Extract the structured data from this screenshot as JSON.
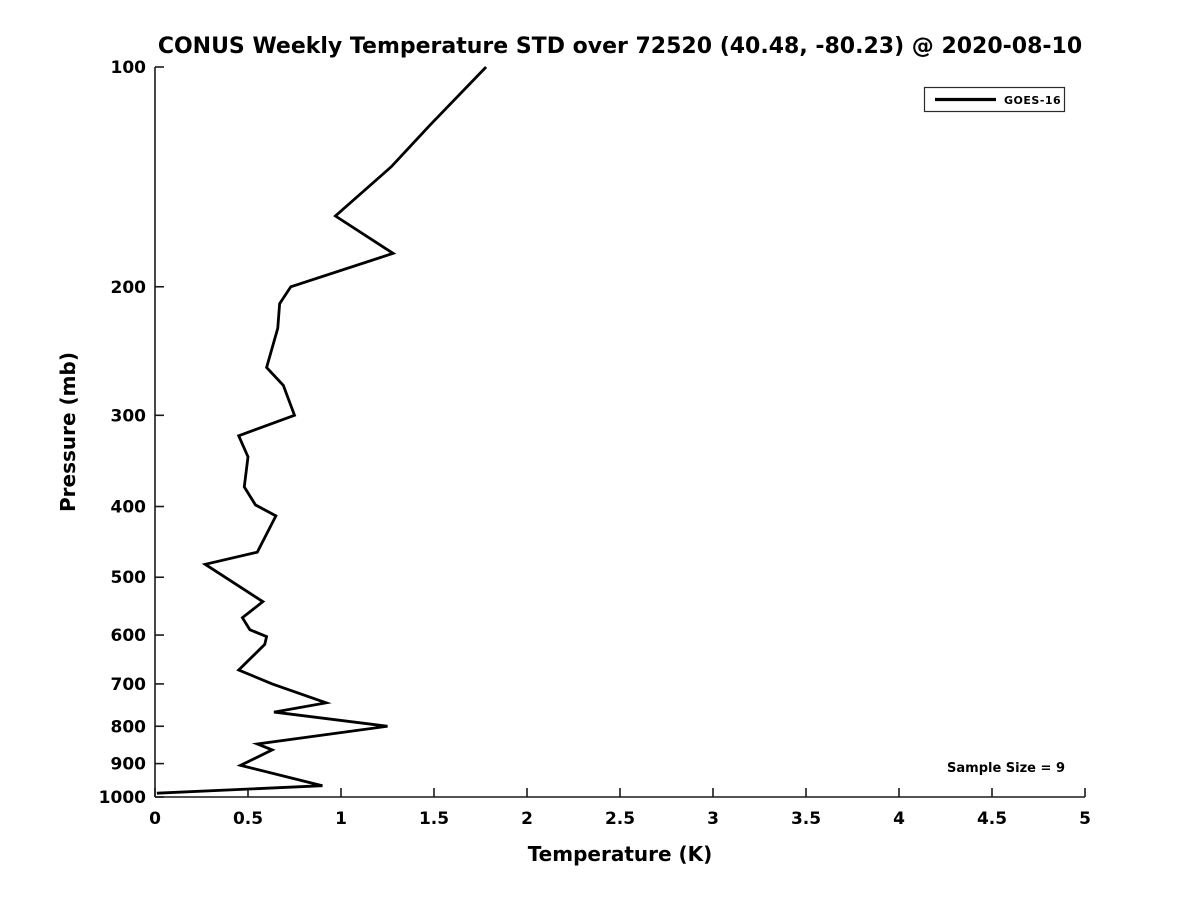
{
  "figure": {
    "background_color": "#ffffff",
    "text_color": "#000000"
  },
  "chart_data": {
    "type": "line",
    "title": "CONUS Weekly Temperature STD over 72520 (40.48, -80.23) @ 2020-08-10",
    "xlabel": "Temperature (K)",
    "ylabel": "Pressure (mb)",
    "xlim": [
      0,
      5
    ],
    "ylim": [
      100,
      1000
    ],
    "yscale": "log",
    "y_axis_direction": "inverted (100 mb at top, 1000 mb at bottom)",
    "grid": false,
    "x_ticks": [
      0,
      0.5,
      1,
      1.5,
      2,
      2.5,
      3,
      3.5,
      4,
      4.5,
      5
    ],
    "y_ticks": [
      100,
      200,
      300,
      400,
      500,
      600,
      700,
      800,
      900,
      1000
    ],
    "legend": {
      "position": "upper right",
      "entries": [
        {
          "label": "GOES-16",
          "color": "#000000"
        }
      ]
    },
    "annotations": [
      {
        "text": "Sample Size = 9",
        "position": "lower right"
      }
    ],
    "series": [
      {
        "name": "GOES-16",
        "color": "#000000",
        "line_width": 2.8,
        "pressure_mb": [
          100,
          120,
          137,
          160,
          180,
          200,
          211,
          228,
          258,
          273,
          300,
          320,
          342,
          376,
          398,
          412,
          462,
          480,
          540,
          568,
          590,
          603,
          618,
          670,
          700,
          743,
          765,
          800,
          846,
          862,
          905,
          965,
          988
        ],
        "std_k": [
          1.78,
          1.48,
          1.27,
          0.97,
          1.28,
          0.73,
          0.67,
          0.66,
          0.6,
          0.69,
          0.75,
          0.45,
          0.5,
          0.48,
          0.54,
          0.65,
          0.55,
          0.27,
          0.58,
          0.47,
          0.51,
          0.6,
          0.59,
          0.45,
          0.63,
          0.92,
          0.64,
          1.25,
          0.55,
          0.63,
          0.46,
          0.9,
          0.01
        ]
      }
    ]
  }
}
